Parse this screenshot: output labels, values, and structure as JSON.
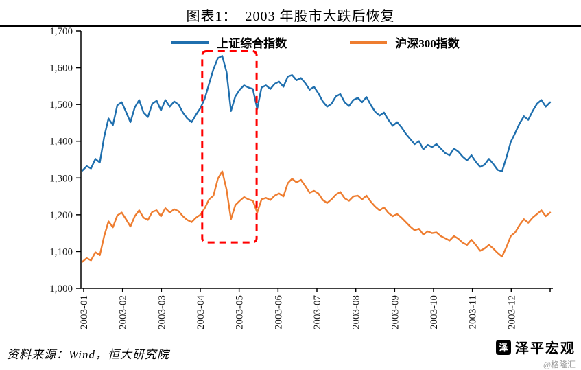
{
  "title": "图表1：  2003 年股市大跌后恢复",
  "source": "资料来源：Wind，恒大研究院",
  "watermark": {
    "brand": "泽平宏观",
    "handle": "@格隆汇",
    "logo_glyph": "泽"
  },
  "chart_data": {
    "type": "line",
    "title": "2003 年股市大跌后恢复",
    "xlabel": "",
    "ylabel": "",
    "grid": false,
    "legend_position": "top",
    "ylim": [
      1000,
      1700
    ],
    "y_ticks": [
      1000,
      1100,
      1200,
      1300,
      1400,
      1500,
      1600,
      1700
    ],
    "y_tick_labels": [
      "1,000",
      "1,100",
      "1,200",
      "1,300",
      "1,400",
      "1,500",
      "1,600",
      "1,700"
    ],
    "x_tick_labels": [
      "2003-01",
      "2003-02",
      "2003-03",
      "2003-04",
      "2003-05",
      "2003-06",
      "2003-07",
      "2003-08",
      "2003-09",
      "2003-10",
      "2003-11",
      "2003-12"
    ],
    "x_span_months": [
      0,
      12
    ],
    "highlight_box": {
      "x0_month": 3.05,
      "x1_month": 4.45,
      "y0": 1125,
      "y1": 1645,
      "color": "#ff0000",
      "style": "dashed"
    },
    "series": [
      {
        "name": "上证综合指数",
        "color": "#1f6fae",
        "values": [
          1320,
          1332,
          1326,
          1352,
          1342,
          1412,
          1462,
          1444,
          1498,
          1506,
          1480,
          1452,
          1492,
          1512,
          1478,
          1466,
          1502,
          1510,
          1484,
          1512,
          1494,
          1508,
          1500,
          1478,
          1462,
          1452,
          1472,
          1490,
          1516,
          1556,
          1596,
          1626,
          1632,
          1588,
          1482,
          1522,
          1540,
          1552,
          1546,
          1542,
          1488,
          1546,
          1552,
          1542,
          1556,
          1562,
          1548,
          1576,
          1580,
          1566,
          1572,
          1558,
          1540,
          1548,
          1530,
          1508,
          1494,
          1502,
          1522,
          1528,
          1506,
          1496,
          1512,
          1518,
          1506,
          1520,
          1498,
          1480,
          1470,
          1478,
          1458,
          1442,
          1452,
          1438,
          1420,
          1406,
          1392,
          1400,
          1378,
          1390,
          1384,
          1392,
          1380,
          1368,
          1362,
          1380,
          1372,
          1358,
          1348,
          1362,
          1344,
          1330,
          1336,
          1352,
          1338,
          1322,
          1318,
          1356,
          1398,
          1422,
          1448,
          1468,
          1458,
          1482,
          1502,
          1512,
          1494,
          1506
        ]
      },
      {
        "name": "沪深300指数",
        "color": "#ee7d30",
        "values": [
          1072,
          1082,
          1076,
          1098,
          1090,
          1142,
          1182,
          1166,
          1198,
          1206,
          1188,
          1168,
          1196,
          1212,
          1192,
          1186,
          1208,
          1212,
          1196,
          1218,
          1206,
          1215,
          1210,
          1196,
          1186,
          1180,
          1192,
          1200,
          1218,
          1242,
          1252,
          1298,
          1318,
          1268,
          1188,
          1226,
          1238,
          1248,
          1242,
          1238,
          1206,
          1242,
          1246,
          1240,
          1252,
          1258,
          1250,
          1286,
          1298,
          1288,
          1295,
          1278,
          1260,
          1265,
          1258,
          1240,
          1232,
          1242,
          1255,
          1262,
          1245,
          1238,
          1250,
          1252,
          1242,
          1252,
          1235,
          1222,
          1212,
          1220,
          1205,
          1196,
          1202,
          1192,
          1180,
          1168,
          1158,
          1162,
          1146,
          1155,
          1150,
          1152,
          1142,
          1136,
          1130,
          1142,
          1135,
          1124,
          1118,
          1132,
          1118,
          1102,
          1108,
          1118,
          1108,
          1096,
          1086,
          1112,
          1142,
          1152,
          1172,
          1188,
          1178,
          1192,
          1202,
          1212,
          1196,
          1206
        ]
      }
    ]
  }
}
